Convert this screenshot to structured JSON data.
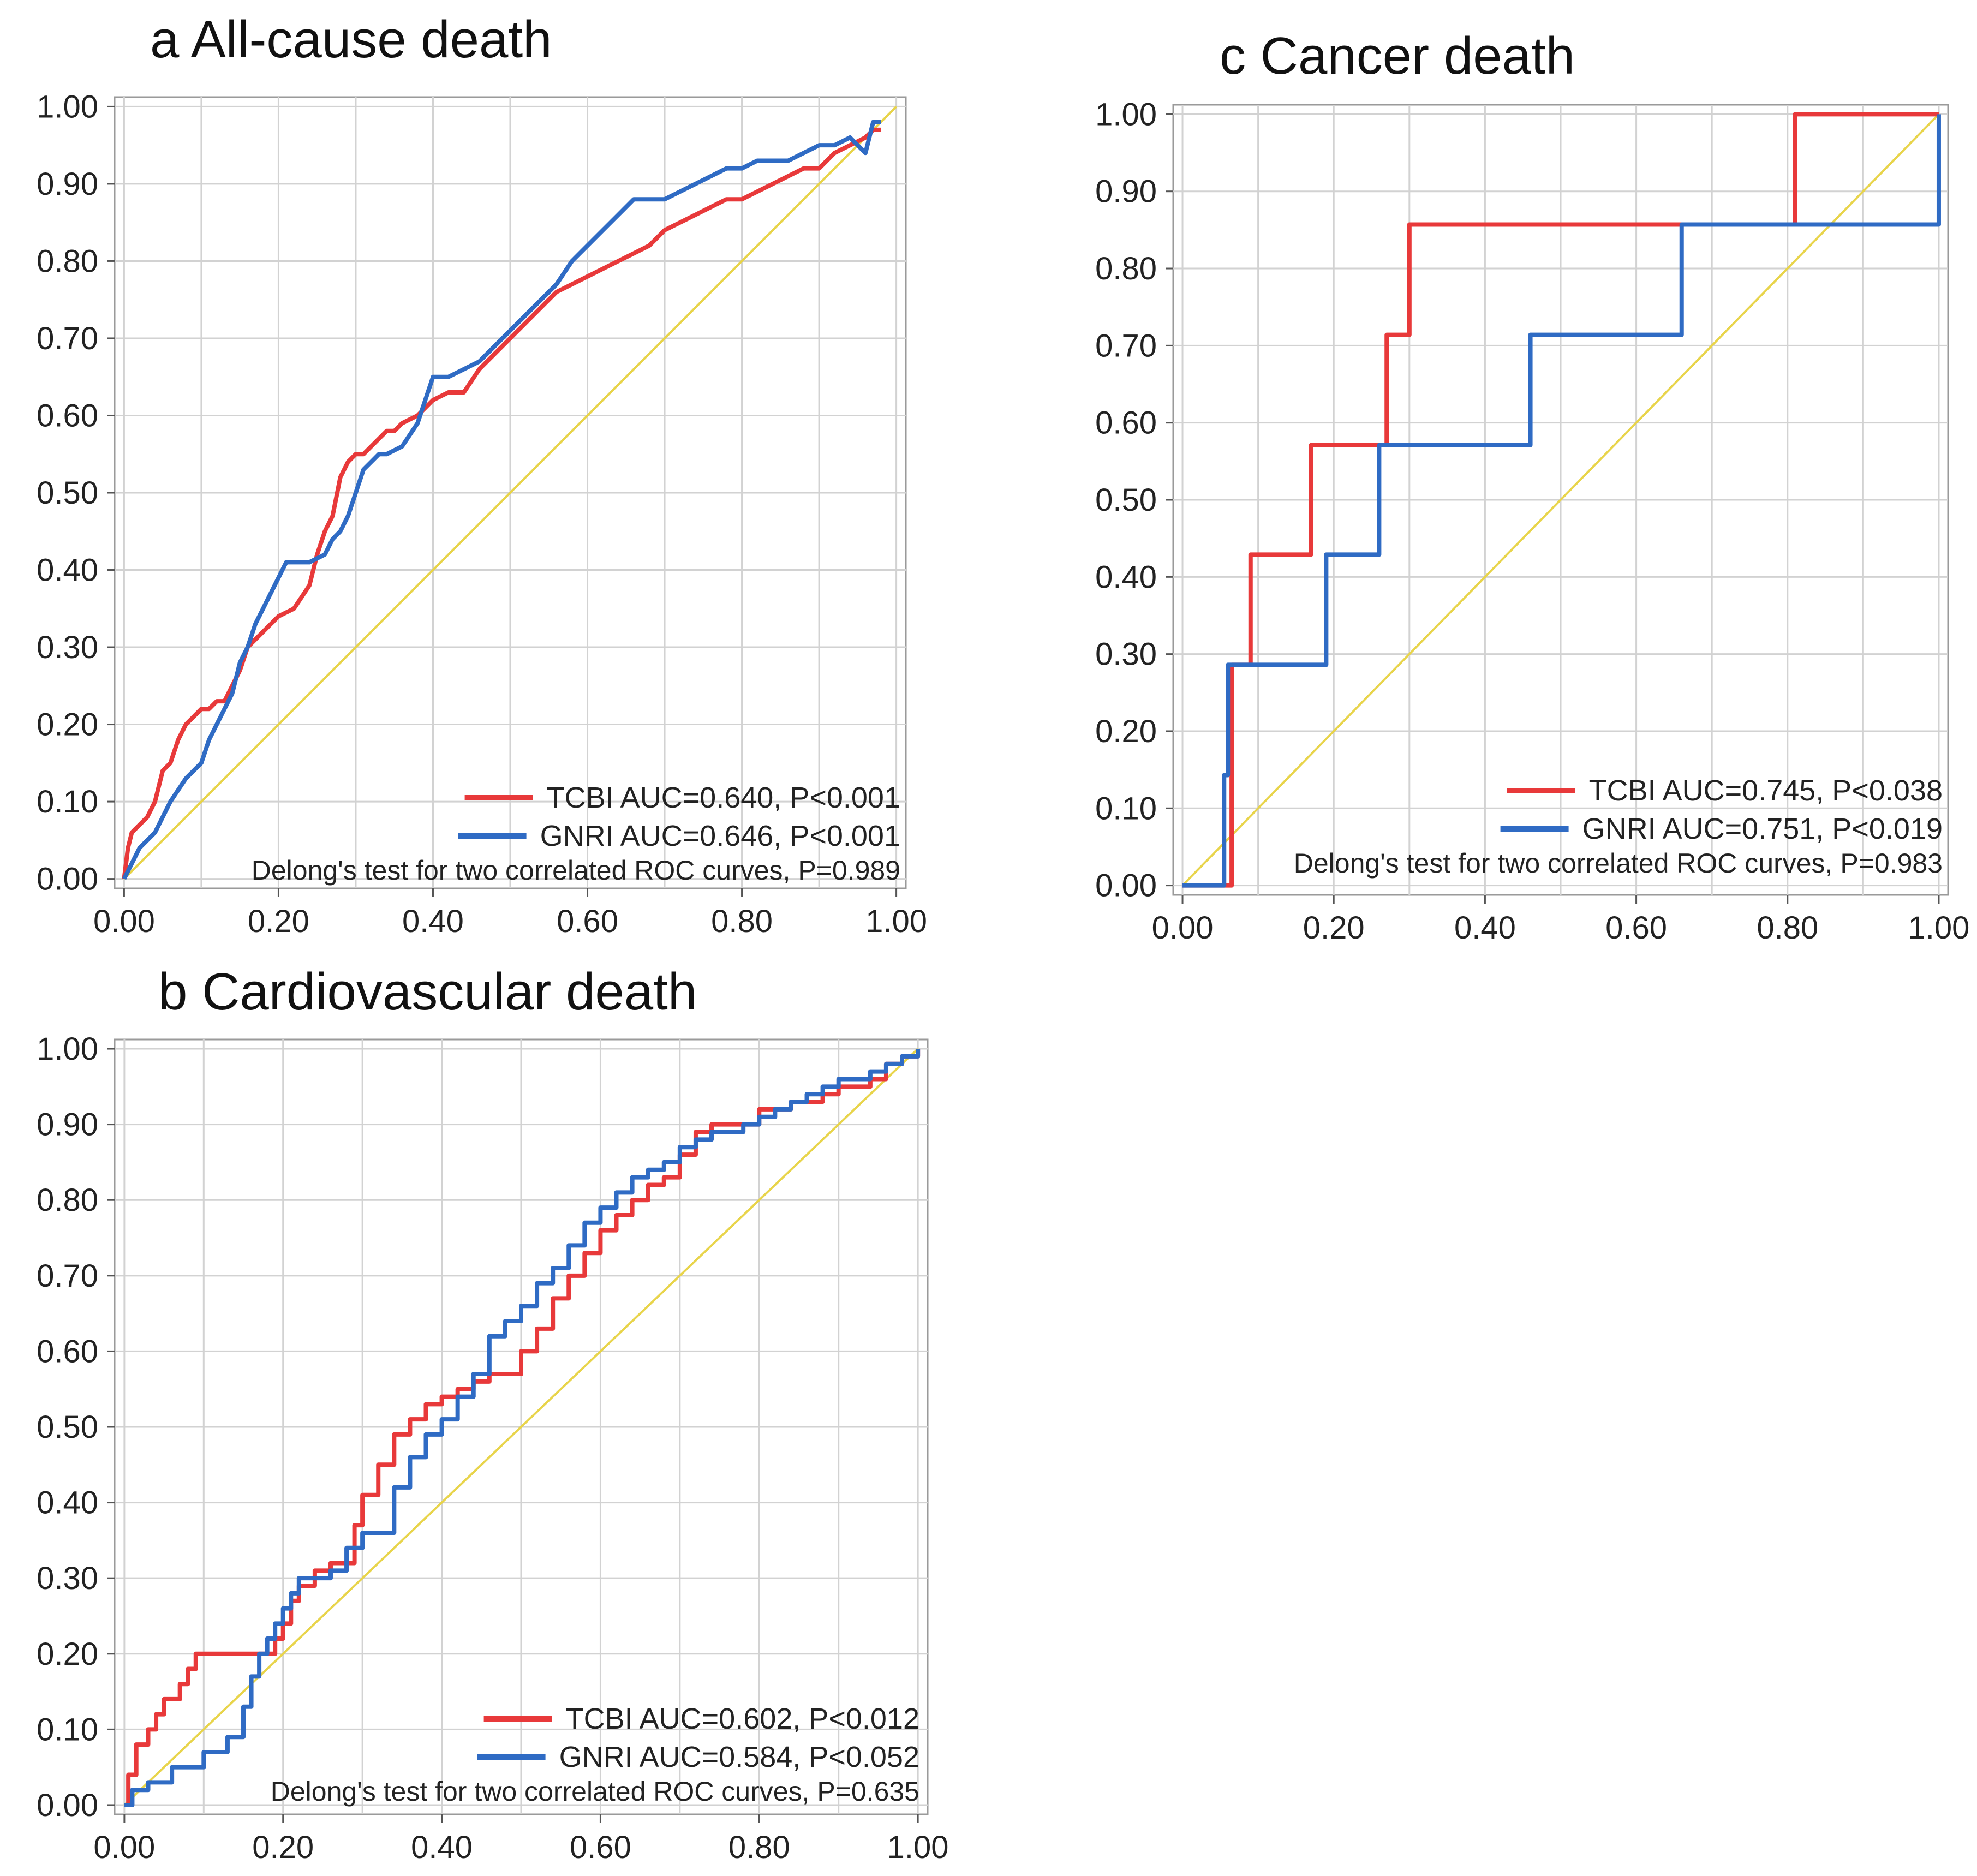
{
  "colors": {
    "tcbi": "#e8393a",
    "gnri": "#2f6bc4",
    "reference": "#e8d44a",
    "grid": "#d2d2d2",
    "frame": "#9a9a9a"
  },
  "chart_data": [
    {
      "type": "line",
      "title": "a All-cause death",
      "xlabel": "",
      "ylabel": "",
      "xlim": [
        0,
        1
      ],
      "ylim": [
        0,
        1
      ],
      "grid": true,
      "legend_position": "bottom-right",
      "x_ticks": [
        "0.00",
        "0.20",
        "0.40",
        "0.60",
        "0.80",
        "1.00"
      ],
      "y_ticks": [
        "0.00",
        "0.10",
        "0.20",
        "0.30",
        "0.40",
        "0.50",
        "0.60",
        "0.70",
        "0.80",
        "0.90",
        "1.00"
      ],
      "legend": [
        {
          "label": "TCBI  AUC=0.640, P<0.001",
          "color": "#e8393a"
        },
        {
          "label": "GNRI AUC=0.646, P<0.001",
          "color": "#2f6bc4"
        }
      ],
      "note": "Delong's test for two correlated ROC curves, P=0.989",
      "series": [
        {
          "name": "TCBI",
          "color": "#e8393a",
          "step": false,
          "x": [
            0,
            0.005,
            0.01,
            0.02,
            0.03,
            0.04,
            0.05,
            0.06,
            0.07,
            0.08,
            0.09,
            0.1,
            0.11,
            0.12,
            0.13,
            0.14,
            0.15,
            0.16,
            0.17,
            0.18,
            0.19,
            0.2,
            0.22,
            0.24,
            0.25,
            0.26,
            0.27,
            0.28,
            0.29,
            0.3,
            0.31,
            0.32,
            0.33,
            0.34,
            0.35,
            0.36,
            0.38,
            0.4,
            0.42,
            0.44,
            0.46,
            0.48,
            0.5,
            0.52,
            0.54,
            0.56,
            0.58,
            0.6,
            0.62,
            0.64,
            0.66,
            0.68,
            0.7,
            0.72,
            0.74,
            0.76,
            0.78,
            0.8,
            0.82,
            0.84,
            0.86,
            0.88,
            0.9,
            0.92,
            0.94,
            0.96,
            0.97,
            0.98
          ],
          "y": [
            0,
            0.04,
            0.06,
            0.07,
            0.08,
            0.1,
            0.14,
            0.15,
            0.18,
            0.2,
            0.21,
            0.22,
            0.22,
            0.23,
            0.23,
            0.25,
            0.27,
            0.3,
            0.31,
            0.32,
            0.33,
            0.34,
            0.35,
            0.38,
            0.42,
            0.45,
            0.47,
            0.52,
            0.54,
            0.55,
            0.55,
            0.56,
            0.57,
            0.58,
            0.58,
            0.59,
            0.6,
            0.62,
            0.63,
            0.63,
            0.66,
            0.68,
            0.7,
            0.72,
            0.74,
            0.76,
            0.77,
            0.78,
            0.79,
            0.8,
            0.81,
            0.82,
            0.84,
            0.85,
            0.86,
            0.87,
            0.88,
            0.88,
            0.89,
            0.9,
            0.91,
            0.92,
            0.92,
            0.94,
            0.95,
            0.96,
            0.97,
            0.97
          ]
        },
        {
          "name": "GNRI",
          "color": "#2f6bc4",
          "step": false,
          "x": [
            0,
            0.01,
            0.02,
            0.04,
            0.05,
            0.06,
            0.08,
            0.1,
            0.11,
            0.12,
            0.13,
            0.14,
            0.15,
            0.16,
            0.17,
            0.18,
            0.19,
            0.2,
            0.21,
            0.22,
            0.24,
            0.26,
            0.27,
            0.28,
            0.29,
            0.3,
            0.31,
            0.32,
            0.33,
            0.34,
            0.36,
            0.38,
            0.4,
            0.42,
            0.44,
            0.46,
            0.48,
            0.5,
            0.52,
            0.54,
            0.56,
            0.58,
            0.6,
            0.62,
            0.64,
            0.66,
            0.68,
            0.7,
            0.72,
            0.74,
            0.76,
            0.78,
            0.8,
            0.82,
            0.84,
            0.86,
            0.88,
            0.9,
            0.92,
            0.94,
            0.96,
            0.97,
            0.98
          ],
          "y": [
            0,
            0.02,
            0.04,
            0.06,
            0.08,
            0.1,
            0.13,
            0.15,
            0.18,
            0.2,
            0.22,
            0.24,
            0.28,
            0.3,
            0.33,
            0.35,
            0.37,
            0.39,
            0.41,
            0.41,
            0.41,
            0.42,
            0.44,
            0.45,
            0.47,
            0.5,
            0.53,
            0.54,
            0.55,
            0.55,
            0.56,
            0.59,
            0.65,
            0.65,
            0.66,
            0.67,
            0.69,
            0.71,
            0.73,
            0.75,
            0.77,
            0.8,
            0.82,
            0.84,
            0.86,
            0.88,
            0.88,
            0.88,
            0.89,
            0.9,
            0.91,
            0.92,
            0.92,
            0.93,
            0.93,
            0.93,
            0.94,
            0.95,
            0.95,
            0.96,
            0.94,
            0.98,
            0.98
          ]
        }
      ]
    },
    {
      "type": "line",
      "title": "b Cardiovascular death",
      "xlabel": "",
      "ylabel": "",
      "xlim": [
        0,
        1
      ],
      "ylim": [
        0,
        1
      ],
      "grid": true,
      "legend_position": "bottom-right",
      "x_ticks": [
        "0.00",
        "0.20",
        "0.40",
        "0.60",
        "0.80",
        "1.00"
      ],
      "y_ticks": [
        "0.00",
        "0.10",
        "0.20",
        "0.30",
        "0.40",
        "0.50",
        "0.60",
        "0.70",
        "0.80",
        "0.90",
        "1.00"
      ],
      "legend": [
        {
          "label": "TCBI  AUC=0.602, P<0.012",
          "color": "#e8393a"
        },
        {
          "label": "GNRI AUC=0.584, P<0.052",
          "color": "#2f6bc4"
        }
      ],
      "note": "Delong's test for two correlated ROC curves, P=0.635",
      "series": [
        {
          "name": "TCBI",
          "color": "#e8393a",
          "step": true,
          "x": [
            0,
            0.005,
            0.015,
            0.03,
            0.04,
            0.05,
            0.07,
            0.08,
            0.09,
            0.11,
            0.16,
            0.18,
            0.19,
            0.2,
            0.21,
            0.22,
            0.24,
            0.26,
            0.28,
            0.29,
            0.3,
            0.32,
            0.34,
            0.36,
            0.38,
            0.4,
            0.42,
            0.44,
            0.46,
            0.48,
            0.5,
            0.52,
            0.54,
            0.56,
            0.58,
            0.6,
            0.62,
            0.64,
            0.66,
            0.68,
            0.7,
            0.72,
            0.74,
            0.76,
            0.78,
            0.8,
            0.82,
            0.84,
            0.86,
            0.88,
            0.9,
            0.92,
            0.94,
            0.96,
            0.98,
            1.0
          ],
          "y": [
            0,
            0.04,
            0.08,
            0.1,
            0.12,
            0.14,
            0.16,
            0.18,
            0.2,
            0.2,
            0.2,
            0.2,
            0.22,
            0.24,
            0.27,
            0.29,
            0.31,
            0.32,
            0.32,
            0.37,
            0.41,
            0.45,
            0.49,
            0.51,
            0.53,
            0.54,
            0.55,
            0.56,
            0.57,
            0.57,
            0.6,
            0.63,
            0.67,
            0.7,
            0.73,
            0.76,
            0.78,
            0.8,
            0.82,
            0.83,
            0.86,
            0.89,
            0.9,
            0.9,
            0.9,
            0.92,
            0.92,
            0.93,
            0.93,
            0.94,
            0.95,
            0.95,
            0.96,
            0.98,
            0.99,
            1.0
          ]
        },
        {
          "name": "GNRI",
          "color": "#2f6bc4",
          "step": true,
          "x": [
            0,
            0.01,
            0.03,
            0.06,
            0.1,
            0.13,
            0.15,
            0.16,
            0.17,
            0.18,
            0.19,
            0.2,
            0.21,
            0.22,
            0.24,
            0.26,
            0.28,
            0.3,
            0.32,
            0.34,
            0.36,
            0.38,
            0.4,
            0.42,
            0.44,
            0.46,
            0.48,
            0.5,
            0.52,
            0.54,
            0.56,
            0.58,
            0.6,
            0.62,
            0.64,
            0.66,
            0.68,
            0.7,
            0.72,
            0.74,
            0.76,
            0.78,
            0.8,
            0.82,
            0.84,
            0.86,
            0.88,
            0.9,
            0.92,
            0.94,
            0.96,
            0.98,
            1.0
          ],
          "y": [
            0,
            0.02,
            0.03,
            0.05,
            0.07,
            0.09,
            0.13,
            0.17,
            0.2,
            0.22,
            0.24,
            0.26,
            0.28,
            0.3,
            0.3,
            0.31,
            0.34,
            0.36,
            0.36,
            0.42,
            0.46,
            0.49,
            0.51,
            0.54,
            0.57,
            0.62,
            0.64,
            0.66,
            0.69,
            0.71,
            0.74,
            0.77,
            0.79,
            0.81,
            0.83,
            0.84,
            0.85,
            0.87,
            0.88,
            0.89,
            0.89,
            0.9,
            0.91,
            0.92,
            0.93,
            0.94,
            0.95,
            0.96,
            0.96,
            0.97,
            0.98,
            0.99,
            1.0
          ]
        }
      ]
    },
    {
      "type": "line",
      "title": "c Cancer death",
      "xlabel": "",
      "ylabel": "",
      "xlim": [
        0,
        1
      ],
      "ylim": [
        0,
        1
      ],
      "grid": true,
      "legend_position": "bottom-right",
      "x_ticks": [
        "0.00",
        "0.20",
        "0.40",
        "0.60",
        "0.80",
        "1.00"
      ],
      "y_ticks": [
        "0.00",
        "0.10",
        "0.20",
        "0.30",
        "0.40",
        "0.50",
        "0.60",
        "0.70",
        "0.80",
        "0.90",
        "1.00"
      ],
      "legend": [
        {
          "label": "TCBI  AUC=0.745, P<0.038",
          "color": "#e8393a"
        },
        {
          "label": "GNRI AUC=0.751, P<0.019",
          "color": "#2f6bc4"
        }
      ],
      "note": "Delong's test for two correlated ROC curves, P=0.983",
      "series": [
        {
          "name": "TCBI",
          "color": "#e8393a",
          "step": true,
          "x": [
            0,
            0.055,
            0.065,
            0.09,
            0.17,
            0.27,
            0.3,
            0.81,
            1.0
          ],
          "y": [
            0,
            0,
            0.286,
            0.429,
            0.571,
            0.714,
            0.857,
            1.0,
            1.0
          ]
        },
        {
          "name": "GNRI",
          "color": "#2f6bc4",
          "step": true,
          "x": [
            0,
            0.05,
            0.055,
            0.06,
            0.19,
            0.26,
            0.46,
            0.66,
            1.0
          ],
          "y": [
            0,
            0,
            0.143,
            0.286,
            0.429,
            0.571,
            0.714,
            0.857,
            1.0
          ]
        }
      ]
    }
  ]
}
